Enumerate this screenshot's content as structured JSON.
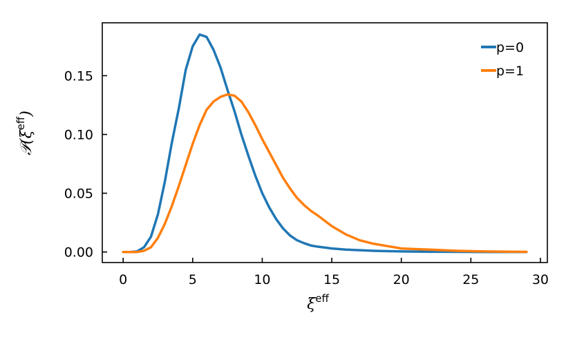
{
  "chart_data": {
    "type": "line",
    "title": "",
    "xlabel": "ξ",
    "xlabel_superscript": "eff",
    "ylabel_prefix": "𝒫(ξ",
    "ylabel_superscript": "eff",
    "ylabel_suffix": ")",
    "xlim": [
      -1.5,
      30.5
    ],
    "ylim": [
      -0.009,
      0.195
    ],
    "xticks": [
      0,
      5,
      10,
      15,
      20,
      25,
      30
    ],
    "xtick_labels": [
      "0",
      "5",
      "10",
      "15",
      "20",
      "25",
      "30"
    ],
    "yticks": [
      0.0,
      0.05,
      0.1,
      0.15
    ],
    "ytick_labels": [
      "0.00",
      "0.05",
      "0.10",
      "0.15"
    ],
    "grid": false,
    "legend_position": "top-right",
    "series": [
      {
        "name": "p=0",
        "color": "#1f77b4",
        "x": [
          0,
          0.5,
          1.0,
          1.5,
          2.0,
          2.5,
          3.0,
          3.5,
          4.0,
          4.5,
          5.0,
          5.5,
          6.0,
          6.5,
          7.0,
          7.5,
          8.0,
          8.5,
          9.0,
          9.5,
          10.0,
          10.5,
          11.0,
          11.5,
          12.0,
          12.5,
          13.0,
          13.5,
          14.0,
          15.0,
          16.0,
          17.0,
          18.0,
          19.0,
          20.0,
          22.0,
          24.0,
          26.0,
          28.0,
          29.0
        ],
        "y": [
          0.0,
          0.0,
          0.0005,
          0.004,
          0.013,
          0.032,
          0.06,
          0.093,
          0.122,
          0.155,
          0.175,
          0.185,
          0.183,
          0.172,
          0.157,
          0.138,
          0.12,
          0.1,
          0.082,
          0.065,
          0.05,
          0.038,
          0.028,
          0.02,
          0.014,
          0.01,
          0.0075,
          0.0055,
          0.0045,
          0.003,
          0.002,
          0.0015,
          0.001,
          0.0007,
          0.0005,
          0.0002,
          0.0001,
          0.0,
          0.0,
          0.0
        ]
      },
      {
        "name": "p=1",
        "color": "#ff7f0e",
        "x": [
          0,
          1.0,
          1.5,
          2.0,
          2.5,
          3.0,
          3.5,
          4.0,
          4.5,
          5.0,
          5.5,
          6.0,
          6.5,
          7.0,
          7.5,
          8.0,
          8.5,
          9.0,
          9.5,
          10.0,
          10.5,
          11.0,
          11.5,
          12.0,
          12.5,
          13.0,
          13.5,
          14.0,
          15.0,
          16.0,
          17.0,
          18.0,
          19.0,
          20.0,
          21.0,
          22.0,
          23.0,
          24.0,
          25.0,
          26.0,
          27.0,
          28.0,
          29.0
        ],
        "y": [
          0.0,
          0.0,
          0.001,
          0.004,
          0.012,
          0.024,
          0.039,
          0.056,
          0.074,
          0.092,
          0.108,
          0.121,
          0.128,
          0.132,
          0.134,
          0.133,
          0.128,
          0.119,
          0.108,
          0.096,
          0.085,
          0.074,
          0.063,
          0.054,
          0.046,
          0.04,
          0.035,
          0.031,
          0.022,
          0.015,
          0.01,
          0.007,
          0.005,
          0.003,
          0.0025,
          0.002,
          0.0015,
          0.001,
          0.0007,
          0.0005,
          0.0003,
          0.0002,
          0.0001
        ]
      }
    ]
  }
}
